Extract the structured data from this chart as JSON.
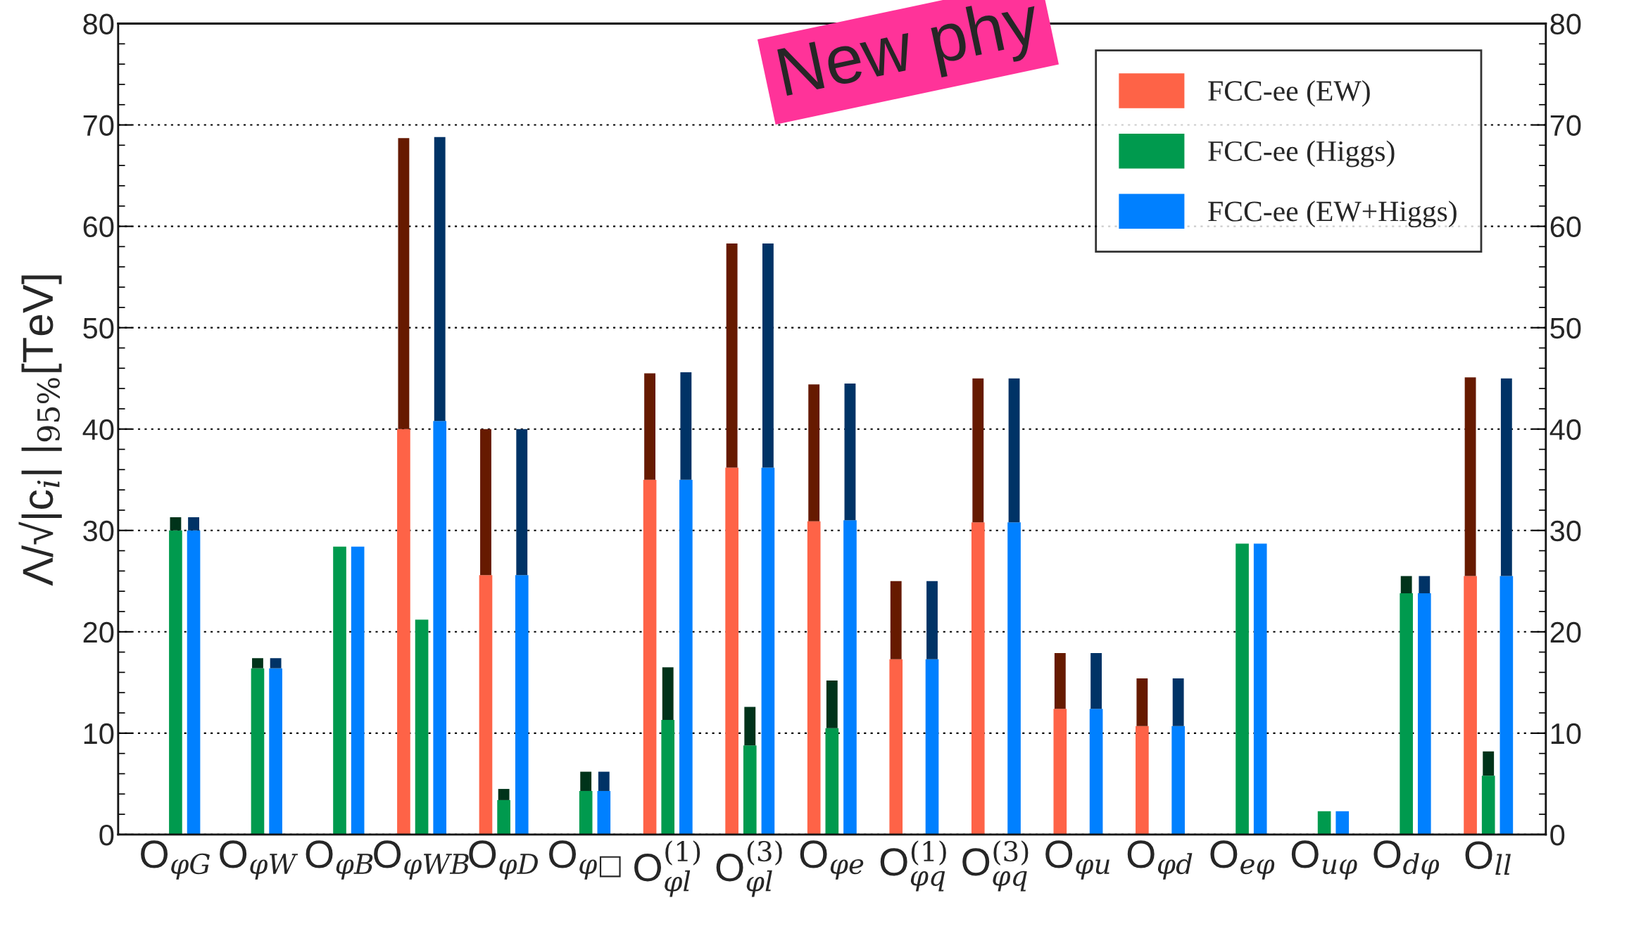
{
  "chart_data": {
    "type": "bar",
    "categories": [
      "O$_{φG}$",
      "O$_{φW}$",
      "O$_{φB}$",
      "O$_{φWB}$",
      "O$_{φD}$",
      "O$_{φ□}$",
      "O$^{(1)}$$_{φl}$",
      "O$^{(3)}$$_{φl}$",
      "O$_{φe}$",
      "O$^{(1)}$$_{φq}$",
      "O$^{(3)}$$_{φq}$",
      "O$_{φu}$",
      "O$_{φd}$",
      "O$_{eφ}$",
      "O$_{uφ}$",
      "O$_{dφ}$",
      "O$_{ll}$"
    ],
    "series": [
      {
        "name": "FCC-ee (EW)",
        "color": "#fe6347",
        "values": [
          null,
          null,
          null,
          40.0,
          25.6,
          null,
          35.0,
          36.2,
          30.9,
          17.3,
          30.8,
          12.4,
          10.7,
          null,
          null,
          null,
          25.5
        ]
      },
      {
        "color": "#661a00",
        "base": [
          null,
          null,
          null,
          40.0,
          25.6,
          null,
          35.0,
          36.2,
          30.9,
          17.3,
          30.8,
          12.4,
          10.7,
          null,
          null,
          null,
          25.5
        ],
        "values": [
          null,
          null,
          null,
          28.7,
          14.4,
          null,
          10.5,
          22.1,
          13.5,
          7.7,
          14.2,
          5.5,
          4.7,
          null,
          null,
          null,
          19.6
        ]
      },
      {
        "name": "FCC-ee (Higgs)",
        "color": "#009a4e",
        "values": [
          30.0,
          16.4,
          28.4,
          21.2,
          3.4,
          4.3,
          11.3,
          8.8,
          10.5,
          null,
          null,
          null,
          null,
          28.7,
          2.3,
          23.8,
          5.8
        ]
      },
      {
        "color": "#00331a",
        "base": [
          30.0,
          16.4,
          null,
          null,
          3.4,
          4.3,
          11.3,
          8.8,
          10.5,
          null,
          null,
          null,
          null,
          null,
          null,
          23.8,
          5.8
        ],
        "values": [
          1.3,
          1.0,
          null,
          null,
          1.1,
          1.9,
          5.2,
          3.8,
          4.7,
          null,
          null,
          null,
          null,
          null,
          null,
          1.7,
          2.4
        ]
      },
      {
        "name": "FCC-ee (EW+Higgs)",
        "color": "#0080ff",
        "values": [
          30.0,
          16.4,
          28.4,
          40.8,
          25.6,
          4.3,
          35.0,
          36.2,
          31.0,
          17.3,
          30.8,
          12.4,
          10.7,
          28.7,
          2.3,
          23.8,
          25.5
        ]
      },
      {
        "color": "#003366",
        "base": [
          30.0,
          16.4,
          null,
          40.8,
          25.6,
          4.3,
          35.0,
          36.2,
          31.0,
          17.3,
          30.8,
          12.4,
          10.7,
          null,
          null,
          23.8,
          25.5
        ],
        "values": [
          1.3,
          1.0,
          null,
          28.0,
          14.4,
          1.9,
          10.6,
          22.1,
          13.5,
          7.7,
          14.2,
          5.5,
          4.7,
          null,
          null,
          1.7,
          19.5
        ]
      }
    ],
    "ylabel": "Λ/√|c$_{i}$| |$_{95%}$[TeV]",
    "ylim": [
      0,
      80
    ],
    "yticks": [
      0,
      10,
      20,
      30,
      40,
      50,
      60,
      70,
      80
    ],
    "y2lim": [
      0,
      80
    ],
    "y2ticks": [
      0,
      10,
      20,
      30,
      40,
      50,
      60,
      70,
      80
    ],
    "grid": "y",
    "legend": "top right",
    "annotations": [
      "New phy"
    ]
  }
}
